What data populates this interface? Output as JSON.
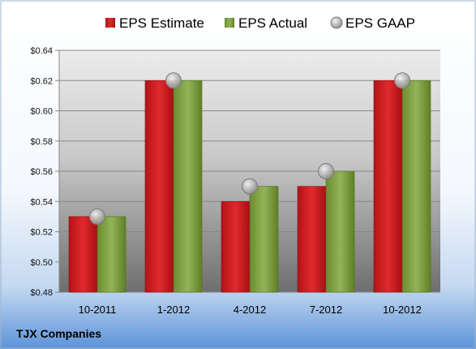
{
  "chart_data": {
    "type": "bar",
    "categories": [
      "10-2011",
      "1-2012",
      "4-2012",
      "7-2012",
      "10-2012"
    ],
    "series": [
      {
        "name": "EPS Estimate",
        "kind": "bar",
        "color": "#d01c1f",
        "values": [
          0.53,
          0.62,
          0.54,
          0.55,
          0.62
        ]
      },
      {
        "name": "EPS Actual",
        "kind": "bar",
        "color": "#7ea040",
        "values": [
          0.53,
          0.62,
          0.55,
          0.56,
          0.62
        ]
      },
      {
        "name": "EPS GAAP",
        "kind": "marker",
        "color": "#b0b0b0",
        "values": [
          0.53,
          0.62,
          0.55,
          0.56,
          0.62
        ]
      }
    ],
    "ylim": [
      0.48,
      0.64
    ],
    "yticks": [
      0.48,
      0.5,
      0.52,
      0.54,
      0.56,
      0.58,
      0.6,
      0.62,
      0.64
    ],
    "ytick_labels": [
      "$0.48",
      "$0.50",
      "$0.52",
      "$0.54",
      "$0.56",
      "$0.58",
      "$0.60",
      "$0.62",
      "$0.64"
    ],
    "grid": true,
    "legend": "top",
    "caption": "TJX Companies"
  }
}
